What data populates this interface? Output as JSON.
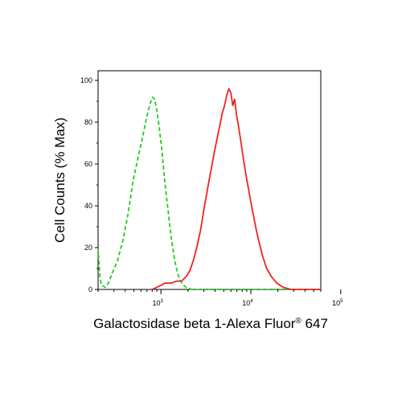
{
  "chart_data": {
    "type": "line",
    "title": "",
    "xlabel": "Galactosidase beta 1-Alexa Fluor",
    "xlabel_superscript": "®",
    "xlabel_suffix": " 647",
    "ylabel": "Cell Counts (% Max)",
    "x_scale": "log",
    "xlim": [
      200,
      60000
    ],
    "ylim": [
      0,
      100
    ],
    "y_ticks": [
      {
        "value": 0,
        "label": "0"
      },
      {
        "value": 20,
        "label": "20"
      },
      {
        "value": 40,
        "label": "40"
      },
      {
        "value": 60,
        "label": "60"
      },
      {
        "value": 80,
        "label": "80"
      },
      {
        "value": 100,
        "label": "100"
      }
    ],
    "x_ticks": [
      {
        "value": 1000,
        "base": "10",
        "exp": "3"
      },
      {
        "value": 10000,
        "base": "10",
        "exp": "4"
      },
      {
        "value": 100000,
        "base": "10",
        "exp": "5"
      }
    ],
    "grid": false,
    "series": [
      {
        "color": "#22cc22",
        "style": "dashed",
        "points": [
          [
            200,
            20
          ],
          [
            210,
            5
          ],
          [
            220,
            2
          ],
          [
            240,
            1
          ],
          [
            260,
            3
          ],
          [
            290,
            8
          ],
          [
            330,
            14
          ],
          [
            380,
            24
          ],
          [
            430,
            36
          ],
          [
            490,
            52
          ],
          [
            550,
            62
          ],
          [
            620,
            72
          ],
          [
            700,
            83
          ],
          [
            760,
            89
          ],
          [
            810,
            92
          ],
          [
            850,
            91
          ],
          [
            900,
            86
          ],
          [
            960,
            77
          ],
          [
            1030,
            66
          ],
          [
            1100,
            52
          ],
          [
            1200,
            38
          ],
          [
            1300,
            25
          ],
          [
            1420,
            14
          ],
          [
            1550,
            7
          ],
          [
            1700,
            3
          ],
          [
            1900,
            1
          ],
          [
            2200,
            0
          ],
          [
            3000,
            0
          ],
          [
            10000,
            0
          ],
          [
            60000,
            0
          ]
        ]
      },
      {
        "color": "#ee2222",
        "style": "solid",
        "points": [
          [
            800,
            0
          ],
          [
            900,
            1
          ],
          [
            1000,
            2
          ],
          [
            1100,
            3
          ],
          [
            1300,
            3
          ],
          [
            1500,
            4
          ],
          [
            1700,
            4
          ],
          [
            1900,
            6
          ],
          [
            2100,
            9
          ],
          [
            2300,
            14
          ],
          [
            2500,
            20
          ],
          [
            2750,
            28
          ],
          [
            3000,
            38
          ],
          [
            3300,
            48
          ],
          [
            3600,
            57
          ],
          [
            3900,
            65
          ],
          [
            4200,
            72
          ],
          [
            4500,
            78
          ],
          [
            4800,
            84
          ],
          [
            5100,
            88
          ],
          [
            5400,
            93
          ],
          [
            5700,
            96
          ],
          [
            6000,
            94
          ],
          [
            6300,
            88
          ],
          [
            6600,
            91
          ],
          [
            6900,
            84
          ],
          [
            7300,
            78
          ],
          [
            7800,
            70
          ],
          [
            8300,
            62
          ],
          [
            8900,
            54
          ],
          [
            9600,
            46
          ],
          [
            10400,
            38
          ],
          [
            11300,
            30
          ],
          [
            12300,
            23
          ],
          [
            13500,
            16
          ],
          [
            15000,
            10
          ],
          [
            17000,
            6
          ],
          [
            19500,
            3
          ],
          [
            23000,
            1
          ],
          [
            28000,
            0
          ],
          [
            60000,
            0
          ]
        ]
      }
    ]
  }
}
